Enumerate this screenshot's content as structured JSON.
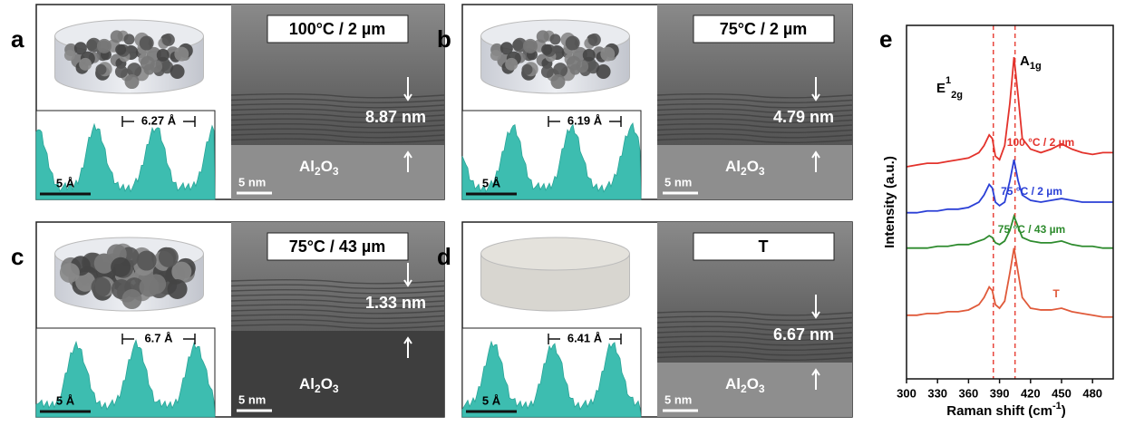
{
  "panels": [
    {
      "letter": "a",
      "condition": "100°C / 2 µm",
      "spacing": "6.27 Å",
      "profile_scale": "5 Å",
      "thickness": "8.87 nm",
      "substrate": [
        "Al",
        "2",
        "O",
        "3"
      ],
      "image_scale": "5 nm"
    },
    {
      "letter": "b",
      "condition": "75°C / 2 µm",
      "spacing": "6.19 Å",
      "profile_scale": "5 Å",
      "thickness": "4.79 nm",
      "substrate": [
        "Al",
        "2",
        "O",
        "3"
      ],
      "image_scale": "5 nm"
    },
    {
      "letter": "c",
      "condition": "75°C / 43 µm",
      "spacing": "6.7 Å",
      "profile_scale": "5 Å",
      "thickness": "1.33 nm",
      "substrate": [
        "Al",
        "2",
        "O",
        "3"
      ],
      "image_scale": "5 nm"
    },
    {
      "letter": "d",
      "condition": "T",
      "spacing": "6.41 Å",
      "profile_scale": "5 Å",
      "thickness": "6.67 nm",
      "substrate": [
        "Al",
        "2",
        "O",
        "3"
      ],
      "image_scale": "5 nm"
    }
  ],
  "chart_data": {
    "type": "line",
    "letter": "e",
    "x_label": [
      "Raman shift (cm",
      "-1",
      ")"
    ],
    "y_label": "Intensity (a.u.)",
    "annotations": [
      [
        "E",
        "1",
        "2g"
      ],
      [
        "A",
        "1g"
      ]
    ],
    "xlim": [
      300,
      500
    ],
    "ylim": [
      0,
      100
    ],
    "xticks": [
      300,
      330,
      360,
      390,
      420,
      450,
      480
    ],
    "vlines": [
      384,
      405
    ],
    "vline_color": "#e8463c",
    "x": [
      300,
      310,
      320,
      330,
      340,
      350,
      360,
      370,
      375,
      380,
      383,
      386,
      390,
      395,
      400,
      404,
      408,
      412,
      420,
      430,
      440,
      450,
      460,
      470,
      480,
      490,
      500
    ],
    "series": [
      {
        "name": "100 °C / 2 µm",
        "color": "#e3322b",
        "values": [
          60,
          60.5,
          61,
          61,
          61.5,
          62,
          62.5,
          64,
          66,
          69,
          68,
          63,
          62,
          66,
          78,
          91,
          80,
          68,
          65,
          64,
          65,
          66.5,
          65,
          64,
          63.5,
          64,
          64
        ]
      },
      {
        "name": "75 °C / 2 µm",
        "color": "#2a3fd6",
        "values": [
          47,
          47,
          47.5,
          47.5,
          48,
          48,
          48.5,
          50,
          52,
          55,
          54,
          50,
          49,
          50,
          56,
          62,
          56,
          52,
          50.5,
          50,
          50.5,
          51,
          50.5,
          50,
          50,
          50,
          50
        ]
      },
      {
        "name": "75 °C / 43 µm",
        "color": "#2e8b2e",
        "values": [
          37,
          37,
          37,
          37.5,
          37.5,
          38,
          38,
          39,
          39.5,
          40.5,
          40,
          38.5,
          38,
          39,
          42,
          46,
          43,
          40,
          39,
          38.5,
          38.5,
          39,
          38,
          37.5,
          37.5,
          37,
          37
        ]
      },
      {
        "name": "T",
        "color": "#e05a3a",
        "values": [
          18,
          18,
          18.5,
          18.5,
          19,
          19,
          19.5,
          21,
          23,
          26,
          25,
          21,
          20,
          22,
          30,
          37,
          30,
          23,
          20,
          19.5,
          19.5,
          20,
          19,
          18.5,
          18,
          17.5,
          17.5
        ]
      }
    ]
  }
}
